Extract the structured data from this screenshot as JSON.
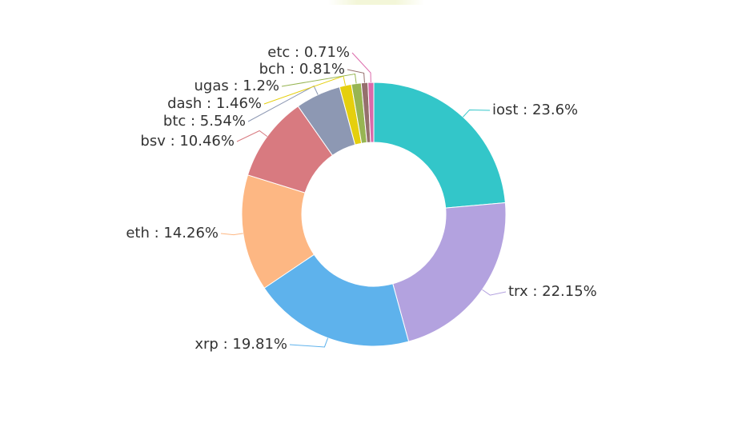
{
  "chart_data": {
    "type": "pie",
    "variant": "donut",
    "label_separator": " : ",
    "value_suffix": "%",
    "legend": "none",
    "slices": [
      {
        "name": "iost",
        "value": 23.6,
        "color": "#33c6c9"
      },
      {
        "name": "trx",
        "value": 22.15,
        "color": "#b3a2df"
      },
      {
        "name": "xrp",
        "value": 19.81,
        "color": "#5eb2ec"
      },
      {
        "name": "eth",
        "value": 14.26,
        "color": "#fdb783"
      },
      {
        "name": "bsv",
        "value": 10.46,
        "color": "#d87a80"
      },
      {
        "name": "btc",
        "value": 5.54,
        "color": "#8d98b3"
      },
      {
        "name": "dash",
        "value": 1.46,
        "color": "#e5cf0d"
      },
      {
        "name": "ugas",
        "value": 1.2,
        "color": "#97b552"
      },
      {
        "name": "bch",
        "value": 0.81,
        "color": "#95706d"
      },
      {
        "name": "etc",
        "value": 0.71,
        "color": "#dc69aa"
      }
    ]
  }
}
